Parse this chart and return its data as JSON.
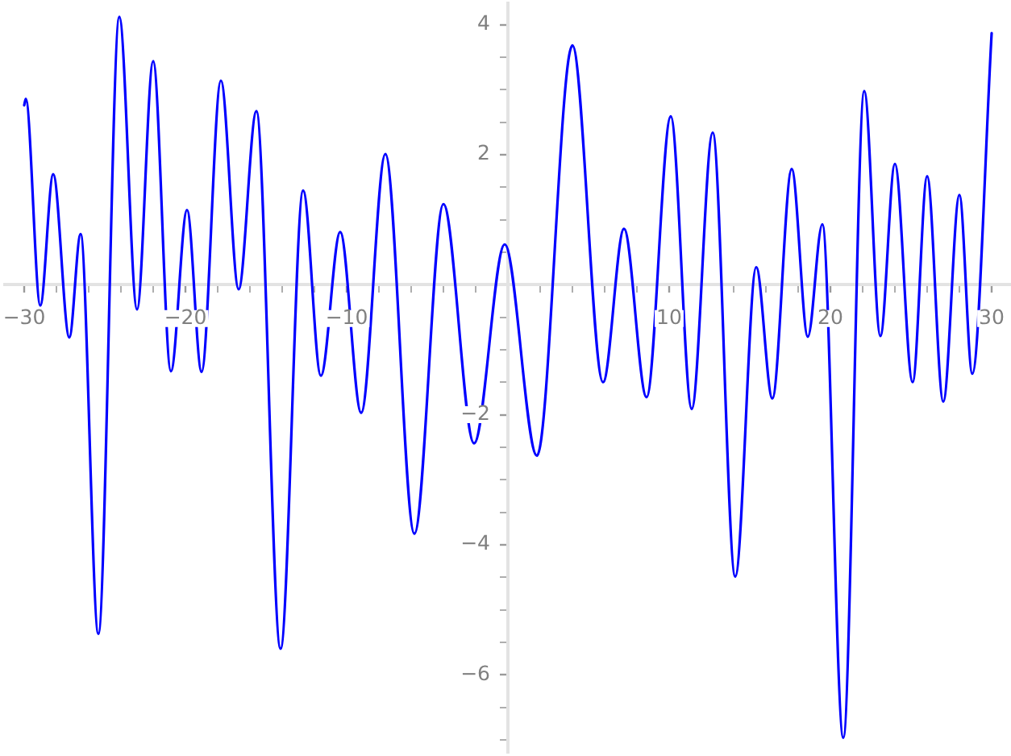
{
  "chart_data": {
    "type": "line",
    "x": [
      -30,
      -29.9,
      -29.0,
      -28.2,
      -27.2,
      -26.5,
      -25.4,
      -24.1,
      -23.0,
      -22.0,
      -20.9,
      -19.9,
      -19.0,
      -17.8,
      -16.7,
      -15.6,
      -14.1,
      -12.7,
      -11.6,
      -10.4,
      -9.1,
      -7.6,
      -5.8,
      -4.0,
      -2.1,
      -0.2,
      1.8,
      4.0,
      5.9,
      7.2,
      8.6,
      10.1,
      11.4,
      12.7,
      14.1,
      15.4,
      16.4,
      17.6,
      18.6,
      19.5,
      20.8,
      22.1,
      23.1,
      24.0,
      25.1,
      26.0,
      27.0,
      28.0,
      28.8,
      30
    ],
    "series": [
      {
        "color": "#0000ff",
        "values": [
          2.76,
          2.86,
          -0.32,
          1.7,
          -0.81,
          0.78,
          -5.37,
          4.12,
          -0.38,
          3.44,
          -1.33,
          1.15,
          -1.34,
          3.14,
          -0.07,
          2.67,
          -5.6,
          1.45,
          -1.4,
          0.81,
          -1.97,
          2.01,
          -3.83,
          1.24,
          -2.44,
          0.62,
          -2.63,
          3.68,
          -1.5,
          0.86,
          -1.73,
          2.59,
          -1.91,
          2.34,
          -4.49,
          0.27,
          -1.75,
          1.78,
          -0.8,
          0.93,
          -6.97,
          2.98,
          -0.79,
          1.86,
          -1.5,
          1.67,
          -1.8,
          1.38,
          -1.37,
          3.87
        ]
      }
    ],
    "xlim": [
      -31.2,
      31.2
    ],
    "ylim": [
      -7.2,
      4.33
    ],
    "xticks": [
      {
        "value": -30,
        "label": "−30"
      },
      {
        "value": -28,
        "label": null
      },
      {
        "value": -26,
        "label": null
      },
      {
        "value": -24,
        "label": null
      },
      {
        "value": -22,
        "label": null
      },
      {
        "value": -20,
        "label": "−20"
      },
      {
        "value": -18,
        "label": null
      },
      {
        "value": -16,
        "label": null
      },
      {
        "value": -14,
        "label": null
      },
      {
        "value": -12,
        "label": null
      },
      {
        "value": -10,
        "label": "−10"
      },
      {
        "value": -8,
        "label": null
      },
      {
        "value": -6,
        "label": null
      },
      {
        "value": -4,
        "label": null
      },
      {
        "value": -2,
        "label": null
      },
      {
        "value": 0,
        "label": null
      },
      {
        "value": 2,
        "label": null
      },
      {
        "value": 4,
        "label": null
      },
      {
        "value": 6,
        "label": null
      },
      {
        "value": 8,
        "label": null
      },
      10,
      {
        "value": 12,
        "label": null
      },
      {
        "value": 14,
        "label": null
      },
      {
        "value": 16,
        "label": null
      },
      {
        "value": 18,
        "label": null
      },
      20,
      {
        "value": 22,
        "label": null
      },
      {
        "value": 24,
        "label": null
      },
      {
        "value": 26,
        "label": null
      },
      {
        "value": 28,
        "label": null
      },
      30
    ],
    "yticks": [
      {
        "value": -7,
        "label": null
      },
      {
        "value": -6.5,
        "label": null
      },
      {
        "value": -6,
        "label": "−6"
      },
      {
        "value": -5.5,
        "label": null
      },
      {
        "value": -5,
        "label": null
      },
      {
        "value": -4.5,
        "label": null
      },
      {
        "value": -4,
        "label": "−4"
      },
      {
        "value": -3.5,
        "label": null
      },
      {
        "value": -3,
        "label": null
      },
      {
        "value": -2.5,
        "label": null
      },
      {
        "value": -2,
        "label": "−2"
      },
      {
        "value": -1.5,
        "label": null
      },
      {
        "value": -1,
        "label": null
      },
      {
        "value": -0.5,
        "label": null
      },
      {
        "value": 0,
        "label": null
      },
      {
        "value": 0.5,
        "label": null
      },
      {
        "value": 1,
        "label": null
      },
      {
        "value": 1.5,
        "label": null
      },
      2,
      {
        "value": 2.5,
        "label": null
      },
      {
        "value": 3,
        "label": null
      },
      {
        "value": 3.5,
        "label": null
      },
      4
    ]
  }
}
